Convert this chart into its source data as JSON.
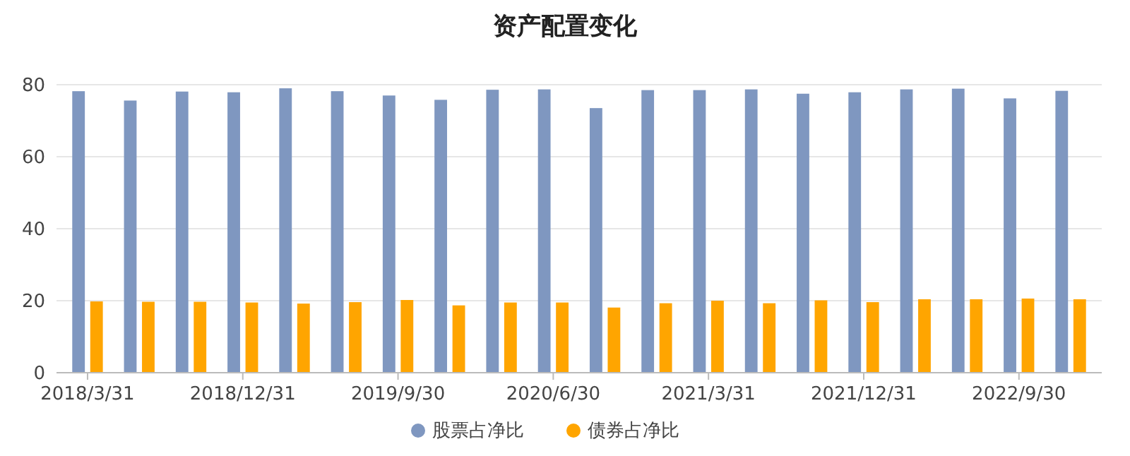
{
  "chart_data": {
    "type": "bar",
    "title": "资产配置变化",
    "categories": [
      "2018/3/31",
      null,
      null,
      "2018/12/31",
      null,
      null,
      "2019/9/30",
      null,
      null,
      "2020/6/30",
      null,
      null,
      "2021/3/31",
      null,
      null,
      "2021/12/31",
      null,
      null,
      "2022/9/30",
      null
    ],
    "series": [
      {
        "name": "股票占净比",
        "color": "#7f97c0",
        "values": [
          78.2,
          75.6,
          78.1,
          77.9,
          79.0,
          78.2,
          77.0,
          75.8,
          78.6,
          78.7,
          73.5,
          78.5,
          78.5,
          78.7,
          77.5,
          77.9,
          78.7,
          78.9,
          76.2,
          78.3
        ]
      },
      {
        "name": "债券占净比",
        "color": "#ffa500",
        "values": [
          19.8,
          19.7,
          19.7,
          19.5,
          19.2,
          19.6,
          20.2,
          18.7,
          19.5,
          19.5,
          18.1,
          19.3,
          20.0,
          19.3,
          20.1,
          19.6,
          20.4,
          20.4,
          20.6,
          20.4
        ]
      }
    ],
    "ylim": [
      0,
      80
    ],
    "yticks": [
      0,
      20,
      40,
      60,
      80
    ],
    "grid": "y",
    "legend": "bottom"
  }
}
